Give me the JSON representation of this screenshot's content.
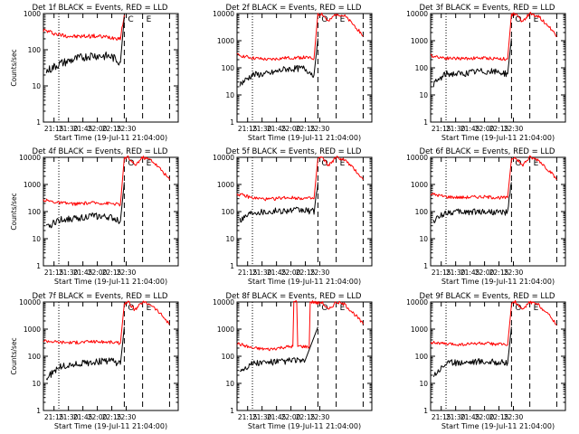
{
  "figure": {
    "start_time_label": "Start Time (19-Jul-11 21:04:00)",
    "ylabel": "Counts/sec",
    "x_tick_labels": [
      "21:15",
      "21:30",
      "21:45",
      "22:00",
      "22:15",
      "22:30"
    ],
    "y_tick_labels": [
      "1",
      "10",
      "100",
      "1000",
      "10000"
    ],
    "colors": {
      "events": "#000000",
      "lld": "#ff0000"
    }
  },
  "chart_data": [
    {
      "type": "line",
      "title": "Det 1f BLACK = Events, RED = LLD",
      "xlabel": "Start Time (19-Jul-11 21:04:00)",
      "ylabel": "Counts/sec",
      "x_tick_labels": [
        "21:15",
        "21:30",
        "21:45",
        "22:00",
        "22:15",
        "22:30"
      ],
      "ylim": [
        1,
        1000
      ],
      "yscale": "log",
      "y_tick_labels": [
        "1",
        "10",
        "100",
        "1000"
      ],
      "vlines": [
        {
          "x": 16,
          "style": "dotted"
        },
        {
          "x": 84,
          "style": "dashed"
        },
        {
          "x": 103,
          "style": "dashed"
        },
        {
          "x": 131,
          "style": "dashed"
        }
      ],
      "markers": [
        "C",
        "E"
      ],
      "series": [
        {
          "name": "LLD",
          "color": "#ff0000",
          "x": [
            0,
            16,
            33,
            50,
            70,
            80,
            84
          ],
          "values": [
            350,
            260,
            230,
            240,
            220,
            210,
            900
          ]
        },
        {
          "name": "Events",
          "color": "#000000",
          "x": [
            3,
            16,
            33,
            50,
            70,
            80,
            84
          ],
          "values": [
            25,
            40,
            55,
            70,
            65,
            45,
            800
          ]
        }
      ]
    },
    {
      "type": "line",
      "title": "Det 2f BLACK = Events, RED = LLD",
      "xlabel": "Start Time (19-Jul-11 21:04:00)",
      "x_tick_labels": [
        "21:15",
        "21:30",
        "21:45",
        "22:00",
        "22:15",
        "22:30"
      ],
      "ylim": [
        1,
        10000
      ],
      "yscale": "log",
      "y_tick_labels": [
        "1",
        "10",
        "100",
        "1000",
        "10000"
      ],
      "vlines": [
        {
          "x": 16,
          "style": "dotted"
        },
        {
          "x": 84,
          "style": "dashed"
        },
        {
          "x": 103,
          "style": "dashed"
        },
        {
          "x": 131,
          "style": "dashed"
        }
      ],
      "markers": [
        "O",
        "E"
      ],
      "series": [
        {
          "name": "LLD",
          "color": "#ff0000",
          "x": [
            0,
            16,
            33,
            50,
            70,
            80,
            84,
            88,
            95,
            103,
            112,
            124,
            131
          ],
          "values": [
            300,
            230,
            200,
            230,
            240,
            220,
            9000,
            10000,
            5000,
            10000,
            8000,
            3000,
            1500
          ]
        },
        {
          "name": "Events",
          "color": "#000000",
          "x": [
            3,
            16,
            33,
            50,
            70,
            80,
            84
          ],
          "values": [
            25,
            55,
            60,
            90,
            95,
            55,
            1200
          ]
        }
      ]
    },
    {
      "type": "line",
      "title": "Det 3f BLACK = Events, RED = LLD",
      "xlabel": "Start Time (19-Jul-11 21:04:00)",
      "x_tick_labels": [
        "21:15",
        "21:30",
        "21:45",
        "22:00",
        "22:15",
        "22:30"
      ],
      "ylim": [
        1,
        10000
      ],
      "yscale": "log",
      "y_tick_labels": [
        "1",
        "10",
        "100",
        "1000",
        "10000"
      ],
      "vlines": [
        {
          "x": 16,
          "style": "dotted"
        },
        {
          "x": 84,
          "style": "dashed"
        },
        {
          "x": 103,
          "style": "dashed"
        },
        {
          "x": 131,
          "style": "dashed"
        }
      ],
      "markers": [
        "O",
        "E"
      ],
      "series": [
        {
          "name": "LLD",
          "color": "#ff0000",
          "x": [
            0,
            16,
            33,
            50,
            70,
            80,
            84,
            88,
            95,
            103,
            112,
            124,
            131
          ],
          "values": [
            280,
            230,
            220,
            230,
            220,
            210,
            9000,
            10000,
            5000,
            10000,
            8000,
            3000,
            1500
          ]
        },
        {
          "name": "Events",
          "color": "#000000",
          "x": [
            3,
            16,
            33,
            50,
            70,
            80,
            84
          ],
          "values": [
            25,
            60,
            60,
            75,
            70,
            60,
            1200
          ]
        }
      ]
    },
    {
      "type": "line",
      "title": "Det 4f BLACK = Events, RED = LLD",
      "xlabel": "Start Time (19-Jul-11 21:04:00)",
      "ylabel": "Counts/sec",
      "x_tick_labels": [
        "21:15",
        "21:30",
        "21:45",
        "22:00",
        "22:15",
        "22:30"
      ],
      "ylim": [
        1,
        10000
      ],
      "yscale": "log",
      "y_tick_labels": [
        "1",
        "10",
        "100",
        "1000",
        "10000"
      ],
      "vlines": [
        {
          "x": 16,
          "style": "dotted"
        },
        {
          "x": 84,
          "style": "dashed"
        },
        {
          "x": 103,
          "style": "dashed"
        },
        {
          "x": 131,
          "style": "dashed"
        }
      ],
      "markers": [
        "O",
        "E"
      ],
      "series": [
        {
          "name": "LLD",
          "color": "#ff0000",
          "x": [
            0,
            16,
            33,
            50,
            70,
            80,
            84,
            88,
            95,
            103,
            112,
            124,
            131
          ],
          "values": [
            270,
            210,
            190,
            210,
            200,
            180,
            9000,
            10000,
            5000,
            10000,
            8000,
            3000,
            1500
          ]
        },
        {
          "name": "Events",
          "color": "#000000",
          "x": [
            3,
            16,
            33,
            50,
            70,
            80,
            84
          ],
          "values": [
            25,
            50,
            55,
            70,
            60,
            45,
            1200
          ]
        }
      ]
    },
    {
      "type": "line",
      "title": "Det 5f BLACK = Events, RED = LLD",
      "xlabel": "Start Time (19-Jul-11 21:04:00)",
      "x_tick_labels": [
        "21:15",
        "21:30",
        "21:45",
        "22:00",
        "22:15",
        "22:30"
      ],
      "ylim": [
        1,
        10000
      ],
      "yscale": "log",
      "y_tick_labels": [
        "1",
        "10",
        "100",
        "1000",
        "10000"
      ],
      "vlines": [
        {
          "x": 16,
          "style": "dotted"
        },
        {
          "x": 84,
          "style": "dashed"
        },
        {
          "x": 103,
          "style": "dashed"
        },
        {
          "x": 131,
          "style": "dashed"
        }
      ],
      "markers": [
        "O",
        "E"
      ],
      "series": [
        {
          "name": "LLD",
          "color": "#ff0000",
          "x": [
            0,
            16,
            33,
            50,
            70,
            80,
            84,
            88,
            95,
            103,
            112,
            124,
            131
          ],
          "values": [
            450,
            320,
            280,
            330,
            310,
            300,
            9000,
            10000,
            5000,
            10000,
            8000,
            3000,
            1500
          ]
        },
        {
          "name": "Events",
          "color": "#000000",
          "x": [
            3,
            16,
            33,
            50,
            70,
            80,
            84
          ],
          "values": [
            50,
            100,
            100,
            110,
            110,
            100,
            1200
          ]
        }
      ]
    },
    {
      "type": "line",
      "title": "Det 6f BLACK = Events, RED = LLD",
      "xlabel": "Start Time (19-Jul-11 21:04:00)",
      "x_tick_labels": [
        "21:15",
        "21:30",
        "21:45",
        "22:00",
        "22:15",
        "22:30"
      ],
      "ylim": [
        1,
        10000
      ],
      "yscale": "log",
      "y_tick_labels": [
        "1",
        "10",
        "100",
        "1000",
        "10000"
      ],
      "vlines": [
        {
          "x": 16,
          "style": "dotted"
        },
        {
          "x": 84,
          "style": "dashed"
        },
        {
          "x": 103,
          "style": "dashed"
        },
        {
          "x": 131,
          "style": "dashed"
        }
      ],
      "markers": [
        "O",
        "E"
      ],
      "series": [
        {
          "name": "LLD",
          "color": "#ff0000",
          "x": [
            0,
            16,
            33,
            50,
            70,
            80,
            84,
            88,
            95,
            103,
            112,
            124,
            131
          ],
          "values": [
            450,
            350,
            330,
            350,
            330,
            320,
            9000,
            10000,
            5000,
            10000,
            8000,
            3000,
            1500
          ]
        },
        {
          "name": "Events",
          "color": "#000000",
          "x": [
            3,
            16,
            33,
            50,
            70,
            80,
            84
          ],
          "values": [
            45,
            95,
            95,
            100,
            95,
            90,
            1200
          ]
        }
      ]
    },
    {
      "type": "line",
      "title": "Det 7f BLACK = Events, RED = LLD",
      "xlabel": "Start Time (19-Jul-11 21:04:00)",
      "ylabel": "Counts/sec",
      "x_tick_labels": [
        "21:15",
        "21:30",
        "21:45",
        "22:00",
        "22:15",
        "22:30"
      ],
      "ylim": [
        1,
        10000
      ],
      "yscale": "log",
      "y_tick_labels": [
        "1",
        "10",
        "100",
        "1000",
        "10000"
      ],
      "vlines": [
        {
          "x": 16,
          "style": "dotted"
        },
        {
          "x": 84,
          "style": "dashed"
        },
        {
          "x": 103,
          "style": "dashed"
        },
        {
          "x": 131,
          "style": "dashed"
        }
      ],
      "markers": [
        "O",
        "E"
      ],
      "series": [
        {
          "name": "LLD",
          "color": "#ff0000",
          "x": [
            0,
            16,
            33,
            50,
            70,
            80,
            84,
            88,
            95,
            103,
            112,
            124,
            131
          ],
          "values": [
            380,
            330,
            320,
            350,
            330,
            300,
            9000,
            10000,
            5000,
            10000,
            8000,
            3000,
            1500
          ]
        },
        {
          "name": "Events",
          "color": "#000000",
          "x": [
            3,
            16,
            33,
            50,
            70,
            80,
            84
          ],
          "values": [
            15,
            40,
            50,
            60,
            70,
            50,
            1200
          ]
        }
      ]
    },
    {
      "type": "line",
      "title": "Det 8f BLACK = Events, RED = LLD",
      "xlabel": "Start Time (19-Jul-11 21:04:00)",
      "x_tick_labels": [
        "21:15",
        "21:30",
        "21:45",
        "22:00",
        "22:15",
        "22:30"
      ],
      "ylim": [
        1,
        10000
      ],
      "yscale": "log",
      "y_tick_labels": [
        "1",
        "10",
        "100",
        "1000",
        "10000"
      ],
      "vlines": [
        {
          "x": 16,
          "style": "dotted"
        },
        {
          "x": 84,
          "style": "dashed"
        },
        {
          "x": 103,
          "style": "dashed"
        },
        {
          "x": 131,
          "style": "dashed"
        }
      ],
      "markers": [
        "O",
        "E"
      ],
      "series": [
        {
          "name": "LLD",
          "color": "#ff0000",
          "x": [
            0,
            16,
            33,
            50,
            58,
            59,
            62,
            63,
            75,
            76,
            80,
            84,
            88,
            95,
            103,
            112,
            124,
            131
          ],
          "values": [
            300,
            200,
            180,
            220,
            230,
            10000,
            10000,
            240,
            220,
            10000,
            10000,
            9000,
            10000,
            5000,
            10000,
            8000,
            3000,
            1500
          ]
        },
        {
          "name": "Events",
          "color": "#000000",
          "x": [
            3,
            16,
            33,
            50,
            60,
            70,
            84
          ],
          "values": [
            30,
            55,
            60,
            65,
            75,
            60,
            1200
          ]
        }
      ]
    },
    {
      "type": "line",
      "title": "Det 9f BLACK = Events, RED = LLD",
      "xlabel": "Start Time (19-Jul-11 21:04:00)",
      "x_tick_labels": [
        "21:15",
        "21:30",
        "21:45",
        "22:00",
        "22:15",
        "22:30"
      ],
      "ylim": [
        1,
        10000
      ],
      "yscale": "log",
      "y_tick_labels": [
        "1",
        "10",
        "100",
        "1000",
        "10000"
      ],
      "vlines": [
        {
          "x": 16,
          "style": "dotted"
        },
        {
          "x": 84,
          "style": "dashed"
        },
        {
          "x": 103,
          "style": "dashed"
        },
        {
          "x": 131,
          "style": "dashed"
        }
      ],
      "markers": [
        "O",
        "E"
      ],
      "series": [
        {
          "name": "LLD",
          "color": "#ff0000",
          "x": [
            0,
            16,
            33,
            50,
            70,
            80,
            84,
            88,
            95,
            103,
            112,
            124,
            131
          ],
          "values": [
            330,
            280,
            270,
            300,
            280,
            260,
            9000,
            10000,
            5000,
            10000,
            8000,
            3000,
            1500
          ]
        },
        {
          "name": "Events",
          "color": "#000000",
          "x": [
            3,
            16,
            33,
            50,
            70,
            80,
            84
          ],
          "values": [
            20,
            55,
            60,
            65,
            60,
            55,
            1200
          ]
        }
      ]
    }
  ]
}
